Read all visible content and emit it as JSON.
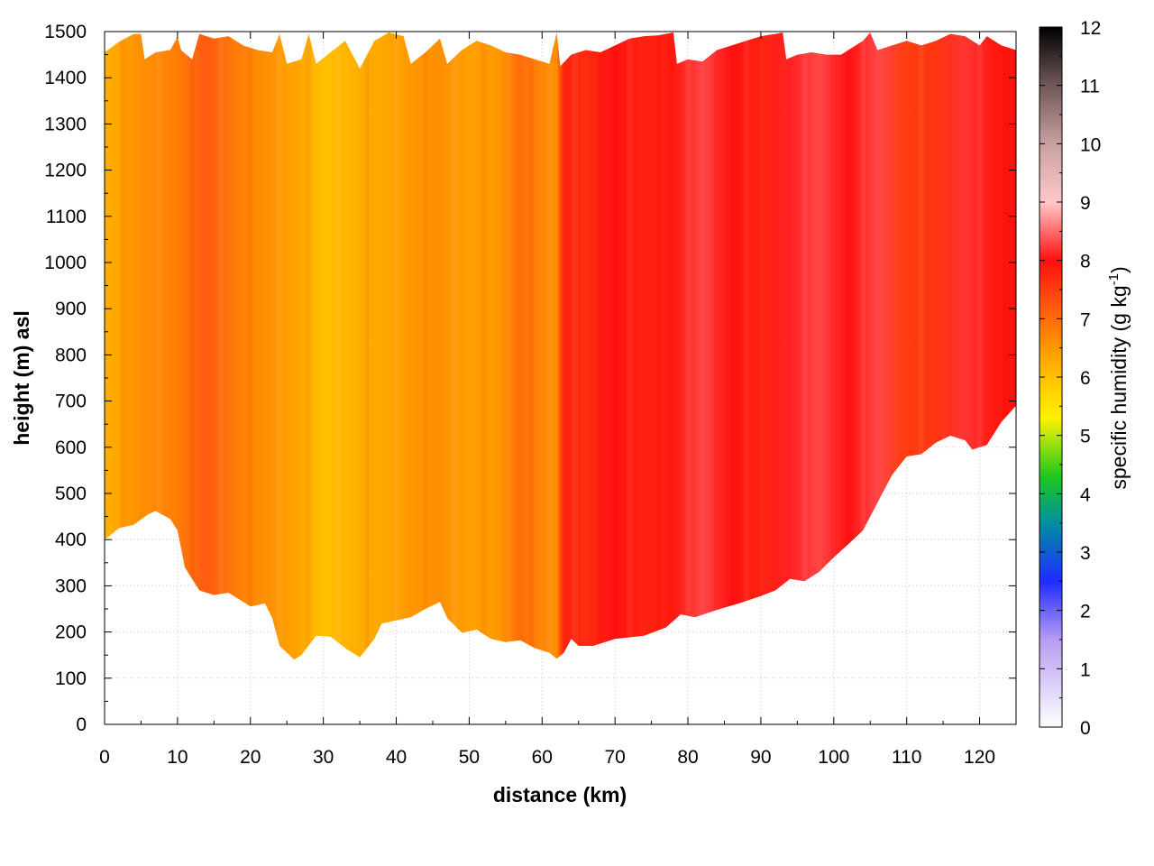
{
  "chart_data": {
    "type": "heatmap",
    "xlabel": "distance (km)",
    "ylabel": "height (m) asl",
    "colorbar_label": "specific humidity (g kg",
    "colorbar_label_superscript": "-1",
    "colorbar_label_suffix": ")",
    "xlim": [
      0,
      125
    ],
    "ylim": [
      0,
      1500
    ],
    "clim": [
      0,
      12
    ],
    "x_ticks": [
      0,
      10,
      20,
      30,
      40,
      50,
      60,
      70,
      80,
      90,
      100,
      110,
      120
    ],
    "y_ticks": [
      0,
      100,
      200,
      300,
      400,
      500,
      600,
      700,
      800,
      900,
      1000,
      1100,
      1200,
      1300,
      1400,
      1500
    ],
    "colorbar_ticks": [
      0,
      1,
      2,
      3,
      4,
      5,
      6,
      7,
      8,
      9,
      10,
      11,
      12
    ],
    "grid": true,
    "colormap": [
      {
        "v": 0,
        "c": "#ffffff"
      },
      {
        "v": 1.5,
        "c": "#b79cf2"
      },
      {
        "v": 2.5,
        "c": "#1f2bff"
      },
      {
        "v": 3.5,
        "c": "#0090a0"
      },
      {
        "v": 4.3,
        "c": "#1ec81e"
      },
      {
        "v": 5.3,
        "c": "#fff200"
      },
      {
        "v": 6.0,
        "c": "#ffc000"
      },
      {
        "v": 6.5,
        "c": "#ff9800"
      },
      {
        "v": 7.2,
        "c": "#ff5a10"
      },
      {
        "v": 8.0,
        "c": "#ff1010"
      },
      {
        "v": 9.0,
        "c": "#ffc8c8"
      },
      {
        "v": 10.0,
        "c": "#c8a0a0"
      },
      {
        "v": 11.0,
        "c": "#705858"
      },
      {
        "v": 12.0,
        "c": "#000000"
      }
    ],
    "terrain_height": [
      [
        0,
        400
      ],
      [
        2,
        425
      ],
      [
        4,
        432
      ],
      [
        6,
        455
      ],
      [
        7,
        462
      ],
      [
        9,
        445
      ],
      [
        10,
        420
      ],
      [
        11,
        340
      ],
      [
        13,
        290
      ],
      [
        15,
        280
      ],
      [
        17,
        285
      ],
      [
        19,
        265
      ],
      [
        20,
        255
      ],
      [
        22,
        262
      ],
      [
        23,
        230
      ],
      [
        24,
        170
      ],
      [
        26,
        140
      ],
      [
        27,
        150
      ],
      [
        29,
        192
      ],
      [
        31,
        190
      ],
      [
        33,
        165
      ],
      [
        35,
        145
      ],
      [
        37,
        185
      ],
      [
        38,
        218
      ],
      [
        40,
        225
      ],
      [
        42,
        232
      ],
      [
        44,
        250
      ],
      [
        46,
        265
      ],
      [
        47,
        230
      ],
      [
        49,
        198
      ],
      [
        51,
        205
      ],
      [
        53,
        185
      ],
      [
        55,
        178
      ],
      [
        57,
        182
      ],
      [
        59,
        165
      ],
      [
        61,
        155
      ],
      [
        62,
        142
      ],
      [
        63,
        155
      ],
      [
        64,
        185
      ],
      [
        65,
        170
      ],
      [
        67,
        170
      ],
      [
        70,
        185
      ],
      [
        74,
        192
      ],
      [
        77,
        210
      ],
      [
        79,
        238
      ],
      [
        81,
        232
      ],
      [
        84,
        248
      ],
      [
        87,
        262
      ],
      [
        90,
        278
      ],
      [
        92,
        290
      ],
      [
        94,
        315
      ],
      [
        96,
        310
      ],
      [
        98,
        330
      ],
      [
        100,
        362
      ],
      [
        102,
        390
      ],
      [
        104,
        420
      ],
      [
        106,
        480
      ],
      [
        108,
        540
      ],
      [
        110,
        580
      ],
      [
        112,
        585
      ],
      [
        114,
        610
      ],
      [
        116,
        625
      ],
      [
        118,
        615
      ],
      [
        119,
        595
      ],
      [
        121,
        605
      ],
      [
        123,
        655
      ],
      [
        125,
        690
      ]
    ],
    "top_height": [
      [
        0,
        1455
      ],
      [
        2,
        1478
      ],
      [
        4,
        1495
      ],
      [
        5,
        1495
      ],
      [
        5.5,
        1440
      ],
      [
        7,
        1455
      ],
      [
        9,
        1460
      ],
      [
        10,
        1488
      ],
      [
        10.5,
        1460
      ],
      [
        12,
        1440
      ],
      [
        13,
        1495
      ],
      [
        15,
        1485
      ],
      [
        17,
        1490
      ],
      [
        19,
        1470
      ],
      [
        21,
        1460
      ],
      [
        23,
        1455
      ],
      [
        24,
        1495
      ],
      [
        25,
        1430
      ],
      [
        27,
        1440
      ],
      [
        28,
        1495
      ],
      [
        29,
        1430
      ],
      [
        31,
        1455
      ],
      [
        33,
        1480
      ],
      [
        35,
        1420
      ],
      [
        37,
        1480
      ],
      [
        39,
        1498
      ],
      [
        41,
        1490
      ],
      [
        42,
        1430
      ],
      [
        44,
        1455
      ],
      [
        46,
        1485
      ],
      [
        47,
        1430
      ],
      [
        49,
        1460
      ],
      [
        51,
        1480
      ],
      [
        53,
        1470
      ],
      [
        55,
        1455
      ],
      [
        57,
        1450
      ],
      [
        59,
        1440
      ],
      [
        61,
        1430
      ],
      [
        62,
        1498
      ],
      [
        62.5,
        1425
      ],
      [
        64,
        1450
      ],
      [
        66,
        1460
      ],
      [
        68,
        1455
      ],
      [
        70,
        1470
      ],
      [
        72,
        1485
      ],
      [
        74,
        1490
      ],
      [
        76,
        1492
      ],
      [
        78,
        1498
      ],
      [
        78.5,
        1430
      ],
      [
        80,
        1440
      ],
      [
        82,
        1435
      ],
      [
        84,
        1460
      ],
      [
        86,
        1470
      ],
      [
        88,
        1480
      ],
      [
        90,
        1490
      ],
      [
        92,
        1495
      ],
      [
        93,
        1498
      ],
      [
        93.5,
        1440
      ],
      [
        95,
        1450
      ],
      [
        97,
        1455
      ],
      [
        99,
        1450
      ],
      [
        101,
        1450
      ],
      [
        102,
        1460
      ],
      [
        104,
        1480
      ],
      [
        105,
        1498
      ],
      [
        106,
        1460
      ],
      [
        108,
        1470
      ],
      [
        110,
        1480
      ],
      [
        112,
        1470
      ],
      [
        114,
        1480
      ],
      [
        116,
        1495
      ],
      [
        118,
        1490
      ],
      [
        120,
        1470
      ],
      [
        121,
        1490
      ],
      [
        123,
        1470
      ],
      [
        125,
        1460
      ]
    ],
    "humidity_profile_columns": [
      {
        "x": 0,
        "q": 6.2
      },
      {
        "x": 5,
        "q": 6.6
      },
      {
        "x": 10,
        "q": 6.8
      },
      {
        "x": 14,
        "q": 7.2
      },
      {
        "x": 18,
        "q": 6.8
      },
      {
        "x": 22,
        "q": 6.6
      },
      {
        "x": 26,
        "q": 6.4
      },
      {
        "x": 30,
        "q": 6.0
      },
      {
        "x": 34,
        "q": 6.2
      },
      {
        "x": 38,
        "q": 6.3
      },
      {
        "x": 42,
        "q": 6.5
      },
      {
        "x": 46,
        "q": 6.6
      },
      {
        "x": 50,
        "q": 6.4
      },
      {
        "x": 54,
        "q": 6.5
      },
      {
        "x": 57,
        "q": 7.0
      },
      {
        "x": 60,
        "q": 6.7
      },
      {
        "x": 62,
        "q": 6.6
      },
      {
        "x": 63,
        "q": 7.8
      },
      {
        "x": 66,
        "q": 7.7
      },
      {
        "x": 70,
        "q": 8.0
      },
      {
        "x": 74,
        "q": 7.8
      },
      {
        "x": 78,
        "q": 7.9
      },
      {
        "x": 82,
        "q": 8.3
      },
      {
        "x": 86,
        "q": 8.0
      },
      {
        "x": 90,
        "q": 7.8
      },
      {
        "x": 94,
        "q": 8.1
      },
      {
        "x": 98,
        "q": 8.3
      },
      {
        "x": 102,
        "q": 8.0
      },
      {
        "x": 106,
        "q": 8.3
      },
      {
        "x": 110,
        "q": 7.5
      },
      {
        "x": 114,
        "q": 7.6
      },
      {
        "x": 118,
        "q": 8.2
      },
      {
        "x": 122,
        "q": 7.9
      },
      {
        "x": 125,
        "q": 8.0
      }
    ]
  }
}
